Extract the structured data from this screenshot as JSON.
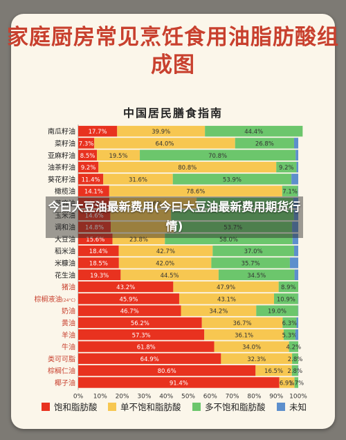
{
  "poster": {
    "title": "家庭厨房常见烹饪食用油脂肪酸组成图",
    "subtitle": "中国居民膳食指南",
    "overlay_text": "今曰大豆油最新费用(今曰大豆油最新费用期货行情)"
  },
  "colors": {
    "saturated": "#e8321f",
    "mono": "#f7c751",
    "poly": "#6cc66c",
    "unknown": "#5d8fcc",
    "plant_label": "#222222",
    "animal_label": "#c8402e"
  },
  "legend": [
    {
      "key": "saturated",
      "label": "饱和脂肪酸"
    },
    {
      "key": "mono",
      "label": "单不饱和脂肪酸"
    },
    {
      "key": "poly",
      "label": "多不饱和脂肪酸"
    },
    {
      "key": "unknown",
      "label": "未知"
    }
  ],
  "chart_data": {
    "type": "bar",
    "orientation": "horizontal",
    "stacked": true,
    "xlim": [
      0,
      100
    ],
    "xticks": [
      "0%",
      "10%",
      "20%",
      "30%",
      "40%",
      "50%",
      "60%",
      "70%",
      "80%",
      "90%",
      "100%"
    ],
    "grid": false,
    "legend_position": "bottom",
    "categories": [
      "南瓜籽油",
      "菜籽油",
      "亚麻籽油",
      "油茶籽油",
      "葵花籽油",
      "橄榄油",
      "芝麻油",
      "玉米油",
      "调和油",
      "大豆油",
      "稻米油",
      "米糠油",
      "花生油",
      "猪油",
      "棕榈液油",
      "奶油",
      "黄油",
      "羊油",
      "牛油",
      "类可可脂",
      "棕榈仁油",
      "椰子油"
    ],
    "category_note": [
      "",
      "",
      "",
      "",
      "",
      "",
      "",
      "",
      "",
      "",
      "",
      "",
      "",
      "",
      "(24°C)",
      "",
      "",
      "",
      "",
      "",
      "",
      ""
    ],
    "category_group": [
      "plant",
      "plant",
      "plant",
      "plant",
      "plant",
      "plant",
      "plant",
      "plant",
      "plant",
      "plant",
      "plant",
      "plant",
      "plant",
      "animal",
      "animal",
      "animal",
      "animal",
      "animal",
      "animal",
      "animal",
      "animal",
      "animal"
    ],
    "series": [
      {
        "name": "饱和脂肪酸",
        "key": "saturated",
        "values": [
          17.7,
          7.3,
          8.5,
          9.2,
          11.4,
          14.1,
          14.2,
          14.6,
          14.8,
          15.6,
          18.4,
          18.5,
          19.3,
          43.2,
          45.9,
          46.7,
          56.2,
          57.3,
          61.8,
          64.9,
          80.6,
          91.4
        ],
        "labels": [
          "17.7%",
          "7.3%",
          "8.5%",
          "9.2%",
          "11.4%",
          "14.1%",
          "14.2%",
          "14.6%",
          "14.8%",
          "15.6%",
          "18.4%",
          "18.5%",
          "19.3%",
          "43.2%",
          "45.9%",
          "46.7%",
          "56.2%",
          "57.3%",
          "61.8%",
          "64.9%",
          "80.6%",
          "91.4%"
        ]
      },
      {
        "name": "单不饱和脂肪酸",
        "key": "mono",
        "values": [
          39.9,
          64.0,
          19.5,
          80.8,
          31.6,
          78.6,
          39.6,
          27.6,
          28.7,
          23.8,
          42.7,
          42.0,
          44.5,
          47.9,
          43.1,
          34.2,
          36.7,
          36.1,
          34.0,
          32.3,
          16.5,
          6.9
        ],
        "labels": [
          "39.9%",
          "64.0%",
          "19.5%",
          "80.8%",
          "31.6%",
          "78.6%",
          "39.6%",
          "",
          "",
          "23.8%",
          "42.7%",
          "42.0%",
          "44.5%",
          "47.9%",
          "43.1%",
          "34.2%",
          "36.7%",
          "36.1%",
          "34.0%",
          "32.3%",
          "16.5%",
          "6.9%"
        ]
      },
      {
        "name": "多不饱和脂肪酸",
        "key": "poly",
        "values": [
          44.4,
          26.8,
          70.8,
          9.2,
          53.9,
          7.1,
          43.9,
          55.8,
          53.7,
          58.0,
          37.0,
          35.7,
          34.5,
          8.9,
          10.9,
          19.0,
          6.3,
          5.3,
          4.2,
          2.8,
          2.8,
          1.7
        ],
        "labels": [
          "44.4%",
          "26.8%",
          "70.8%",
          "9.2%",
          "53.9%",
          "7.1%",
          "43.9%",
          "",
          "53.7%",
          "58.0%",
          "37.0%",
          "35.7%",
          "34.5%",
          "8.9%",
          "10.9%",
          "19.0%",
          "6.3%",
          "5.3%",
          "4.2%",
          "2.8%",
          "2.8%",
          "1.7%"
        ]
      },
      {
        "name": "未知",
        "key": "unknown",
        "values": [
          0,
          1.9,
          1.2,
          0.8,
          3.1,
          0.2,
          2.3,
          2.0,
          2.8,
          2.6,
          1.9,
          3.8,
          1.7,
          0,
          0.1,
          0.1,
          0.8,
          1.3,
          0,
          0,
          0.1,
          0
        ],
        "labels": [
          "",
          "",
          "",
          "",
          "",
          "",
          "",
          "",
          "",
          "",
          "",
          "",
          "",
          "",
          "",
          "",
          "",
          "",
          "",
          "",
          "",
          ""
        ]
      }
    ]
  }
}
